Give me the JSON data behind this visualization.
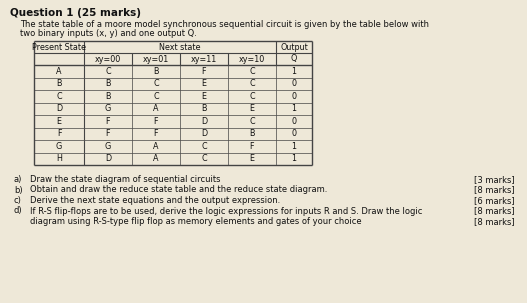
{
  "title": "Question 1 (25 marks)",
  "intro_line1": "The state table of a moore model synchronous sequential circuit is given by the table below with",
  "intro_line2": "two binary inputs (x, y) and one output Q.",
  "table": {
    "present_state_header": "Present State",
    "next_state_header": "Next state",
    "output_header": "Output",
    "col_headers": [
      "xy=00",
      "xy=01",
      "xy=11",
      "xy=10",
      "Q"
    ],
    "rows": [
      [
        "A",
        "C",
        "B",
        "F",
        "C",
        "1"
      ],
      [
        "B",
        "B",
        "C",
        "E",
        "C",
        "0"
      ],
      [
        "C",
        "B",
        "C",
        "E",
        "C",
        "0"
      ],
      [
        "D",
        "G",
        "A",
        "B",
        "E",
        "1"
      ],
      [
        "E",
        "F",
        "F",
        "D",
        "C",
        "0"
      ],
      [
        "F",
        "F",
        "F",
        "D",
        "B",
        "0"
      ],
      [
        "G",
        "G",
        "A",
        "C",
        "F",
        "1"
      ],
      [
        "H",
        "D",
        "A",
        "C",
        "E",
        "1"
      ]
    ]
  },
  "questions": [
    {
      "letter": "a)",
      "text": "Draw the state diagram of sequential circuits",
      "marks": "[3 marks]"
    },
    {
      "letter": "b)",
      "text": "Obtain and draw the reduce state table and the reduce state diagram.",
      "marks": "[8 marks]"
    },
    {
      "letter": "c)",
      "text": "Derive the next state equations and the output expression.",
      "marks": "[6 marks]"
    },
    {
      "letter": "d)",
      "text": "If R-S flip-flops are to be used, derive the logic expressions for inputs R and S. Draw the logic",
      "text2": "diagram using R-S-type flip flop as memory elements and gates of your choice",
      "marks": "[8 marks]"
    }
  ],
  "bg_color": "#eee8d8",
  "text_color": "#111111",
  "table_line_color": "#444444",
  "font_size_title": 7.5,
  "font_size_body": 6.0,
  "font_size_table": 5.8
}
